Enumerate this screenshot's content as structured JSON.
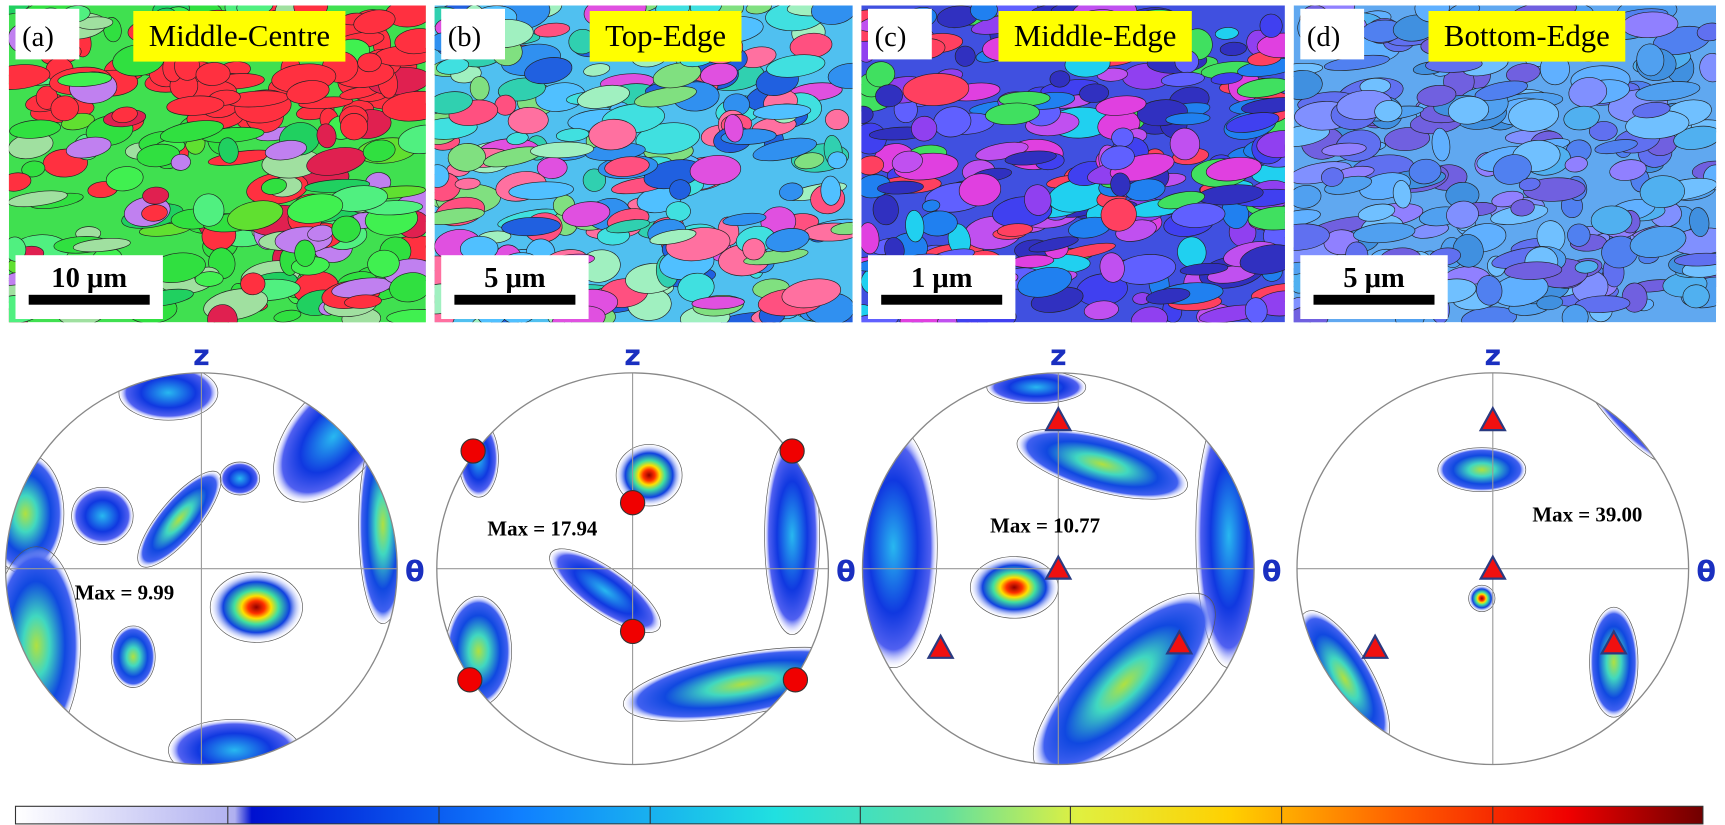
{
  "panels": [
    {
      "letter": "(a)",
      "title": "Middle-Centre",
      "scale": "10 μm",
      "max": "Max = 9.99"
    },
    {
      "letter": "(b)",
      "title": "Top-Edge",
      "scale": "5 μm",
      "max": "Max = 17.94"
    },
    {
      "letter": "(c)",
      "title": "Middle-Edge",
      "scale": "1 μm",
      "max": "Max = 10.77"
    },
    {
      "letter": "(d)",
      "title": "Bottom-Edge",
      "scale": "5 μm",
      "max": "Max = 39.00"
    }
  ],
  "axes": {
    "z": "z",
    "theta": "θ"
  }
}
